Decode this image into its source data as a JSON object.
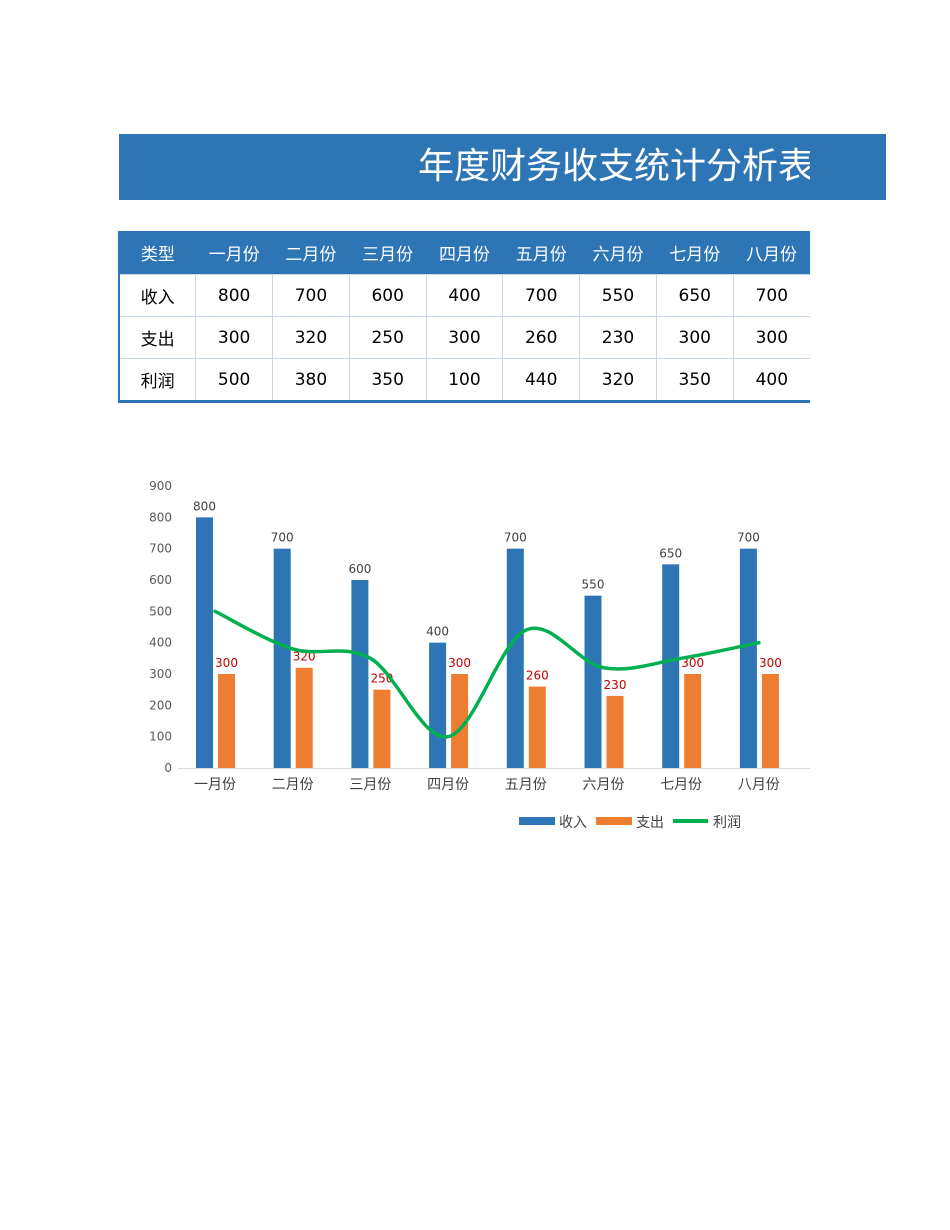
{
  "title": "年度财务收支统计分析表",
  "table": {
    "headers": [
      "类型",
      "一月份",
      "二月份",
      "三月份",
      "四月份",
      "五月份",
      "六月份",
      "七月份",
      "八月份"
    ],
    "rows": [
      [
        "收入",
        "800",
        "700",
        "600",
        "400",
        "700",
        "550",
        "650",
        "700"
      ],
      [
        "支出",
        "300",
        "320",
        "250",
        "300",
        "260",
        "230",
        "300",
        "300"
      ],
      [
        "利润",
        "500",
        "380",
        "350",
        "100",
        "440",
        "320",
        "350",
        "400"
      ]
    ]
  },
  "chart_data": {
    "type": "bar",
    "categories": [
      "一月份",
      "二月份",
      "三月份",
      "四月份",
      "五月份",
      "六月份",
      "七月份",
      "八月份"
    ],
    "series": [
      {
        "name": "收入",
        "type": "bar",
        "color": "#2E75B6",
        "label_color": "#404040",
        "values": [
          800,
          700,
          600,
          400,
          700,
          550,
          650,
          700
        ]
      },
      {
        "name": "支出",
        "type": "bar",
        "color": "#ED7D31",
        "label_color": "#C00000",
        "values": [
          300,
          320,
          250,
          300,
          260,
          230,
          300,
          300
        ]
      },
      {
        "name": "利润",
        "type": "smooth-line",
        "color": "#00B050",
        "values": [
          500,
          380,
          350,
          100,
          440,
          320,
          350,
          400
        ]
      }
    ],
    "yticks": [
      "0",
      "100",
      "200",
      "300",
      "400",
      "500",
      "600",
      "700",
      "800",
      "900"
    ],
    "ylim": [
      0,
      900
    ],
    "grid": false,
    "legend": "bottom"
  }
}
